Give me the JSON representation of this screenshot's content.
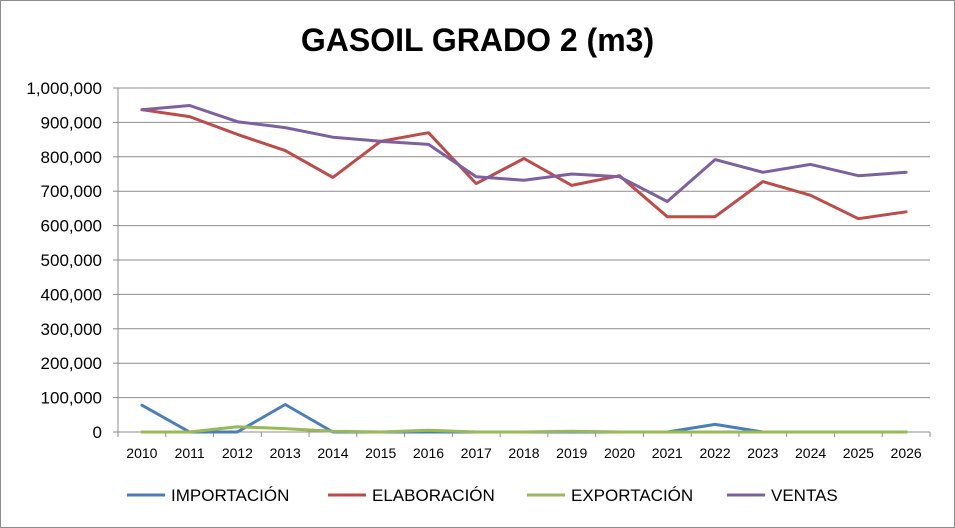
{
  "chart_data": {
    "type": "line",
    "title": "GASOIL GRADO 2 (m3)",
    "xlabel": "",
    "ylabel": "",
    "x": [
      "2010",
      "2011",
      "2012",
      "2013",
      "2014",
      "2015",
      "2016",
      "2017",
      "2018",
      "2019",
      "2020",
      "2021",
      "2022",
      "2023",
      "2024",
      "2025",
      "2026"
    ],
    "ylim": [
      0,
      1000000
    ],
    "yticks": [
      0,
      100000,
      200000,
      300000,
      400000,
      500000,
      600000,
      700000,
      800000,
      900000,
      1000000
    ],
    "ytick_labels": [
      "0",
      "100,000",
      "200,000",
      "300,000",
      "400,000",
      "500,000",
      "600,000",
      "700,000",
      "800,000",
      "900,000",
      "1,000,000"
    ],
    "grid": "horizontal",
    "legend_position": "bottom",
    "series": [
      {
        "name": "IMPORTACIÓN",
        "color": "#4a7ebb",
        "values": [
          78000,
          0,
          0,
          80000,
          0,
          0,
          0,
          0,
          0,
          0,
          0,
          0,
          22000,
          0,
          0,
          0,
          0
        ]
      },
      {
        "name": "ELABORACIÓN",
        "color": "#be4b48",
        "values": [
          937000,
          917000,
          865000,
          818000,
          740000,
          845000,
          870000,
          722000,
          795000,
          717000,
          745000,
          626000,
          626000,
          728000,
          688000,
          620000,
          640000
        ]
      },
      {
        "name": "EXPORTACIÓN",
        "color": "#98b954",
        "values": [
          0,
          0,
          15000,
          10000,
          2000,
          0,
          5000,
          0,
          0,
          2000,
          0,
          0,
          0,
          0,
          0,
          0,
          0
        ]
      },
      {
        "name": "VENTAS",
        "color": "#7d60a0",
        "values": [
          937000,
          949000,
          902000,
          885000,
          857000,
          845000,
          836000,
          742000,
          732000,
          750000,
          742000,
          670000,
          792000,
          755000,
          778000,
          745000,
          755000
        ]
      }
    ]
  }
}
